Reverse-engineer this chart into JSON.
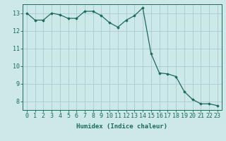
{
  "x": [
    0,
    1,
    2,
    3,
    4,
    5,
    6,
    7,
    8,
    9,
    10,
    11,
    12,
    13,
    14,
    15,
    16,
    17,
    18,
    19,
    20,
    21,
    22,
    23
  ],
  "y": [
    13.0,
    12.6,
    12.6,
    13.0,
    12.9,
    12.7,
    12.7,
    13.1,
    13.1,
    12.85,
    12.45,
    12.2,
    12.6,
    12.85,
    13.3,
    10.7,
    9.6,
    9.55,
    9.4,
    8.55,
    8.1,
    7.85,
    7.85,
    7.75
  ],
  "line_color": "#1a6b5a",
  "marker": "D",
  "marker_size": 1.8,
  "bg_color": "#cce8e8",
  "grid_color": "#aacccc",
  "xlabel": "Humidex (Indice chaleur)",
  "xlim": [
    -0.5,
    23.5
  ],
  "ylim": [
    7.5,
    13.5
  ],
  "yticks": [
    8,
    9,
    10,
    11,
    12,
    13
  ],
  "xticks": [
    0,
    1,
    2,
    3,
    4,
    5,
    6,
    7,
    8,
    9,
    10,
    11,
    12,
    13,
    14,
    15,
    16,
    17,
    18,
    19,
    20,
    21,
    22,
    23
  ],
  "tick_color": "#1a6b5a",
  "label_fontsize": 6.5,
  "tick_fontsize": 6.0
}
